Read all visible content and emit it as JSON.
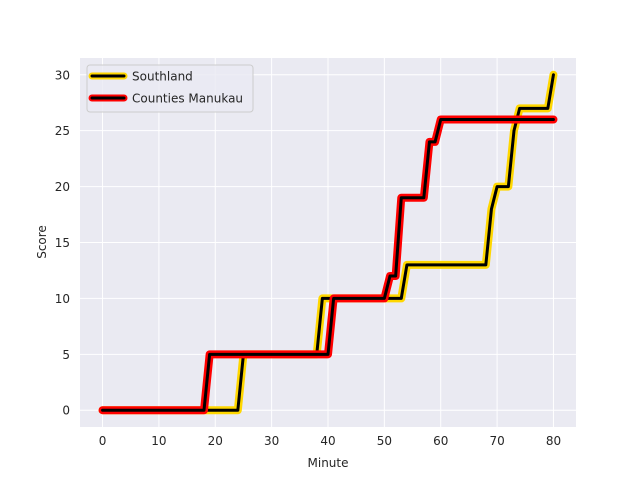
{
  "chart_data": {
    "type": "line",
    "title": "",
    "xlabel": "Minute",
    "ylabel": "Score",
    "xlim": [
      -4,
      84
    ],
    "ylim": [
      -1.5,
      31.5
    ],
    "xticks": [
      0,
      10,
      20,
      30,
      40,
      50,
      60,
      70,
      80
    ],
    "yticks": [
      0,
      5,
      10,
      15,
      20,
      25,
      30
    ],
    "grid": true,
    "legend_position": "top-left",
    "background_color": "#eaeaf2",
    "series": [
      {
        "name": "Southland",
        "line_color": "#000000",
        "outline_color": "#ffd700",
        "x": [
          0,
          24,
          25,
          38,
          39,
          53,
          54,
          68,
          69,
          70,
          72,
          73,
          74,
          79,
          80
        ],
        "y": [
          0,
          0,
          5,
          5,
          10,
          10,
          13,
          13,
          18,
          20,
          20,
          25,
          27,
          27,
          30
        ]
      },
      {
        "name": "Counties Manukau",
        "line_color": "#000000",
        "outline_color": "#ff0000",
        "x": [
          0,
          18,
          19,
          40,
          41,
          50,
          51,
          52,
          53,
          57,
          58,
          59,
          60,
          80
        ],
        "y": [
          0,
          0,
          5,
          5,
          10,
          10,
          12,
          12,
          19,
          19,
          24,
          24,
          26,
          26
        ]
      }
    ]
  }
}
